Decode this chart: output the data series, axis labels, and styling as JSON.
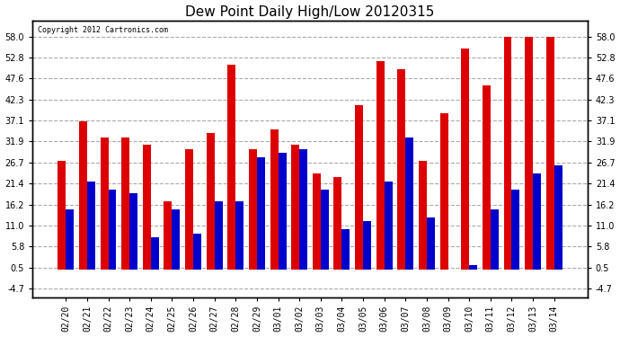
{
  "title": "Dew Point Daily High/Low 20120315",
  "copyright": "Copyright 2012 Cartronics.com",
  "dates": [
    "02/20",
    "02/21",
    "02/22",
    "02/23",
    "02/24",
    "02/25",
    "02/26",
    "02/27",
    "02/28",
    "02/29",
    "03/01",
    "03/02",
    "03/03",
    "03/04",
    "03/05",
    "03/06",
    "03/07",
    "03/08",
    "03/09",
    "03/10",
    "03/11",
    "03/12",
    "03/13",
    "03/14"
  ],
  "high": [
    27,
    37,
    33,
    33,
    31,
    17,
    30,
    34,
    51,
    30,
    35,
    31,
    24,
    23,
    41,
    52,
    50,
    27,
    39,
    55,
    46,
    58,
    58,
    58
  ],
  "low": [
    15,
    22,
    20,
    19,
    8,
    15,
    9,
    17,
    17,
    28,
    29,
    30,
    20,
    10,
    12,
    22,
    33,
    13,
    0,
    1,
    15,
    20,
    24,
    26
  ],
  "high_color": "#dd0000",
  "low_color": "#0000cc",
  "bg_color": "#ffffff",
  "plot_bg_color": "#ffffff",
  "grid_color": "#aaaaaa",
  "yticks": [
    -4.7,
    0.5,
    5.8,
    11.0,
    16.2,
    21.4,
    26.7,
    31.9,
    37.1,
    42.3,
    47.6,
    52.8,
    58.0
  ],
  "ymin": -7.0,
  "ymax": 62.0,
  "bar_width": 0.38
}
